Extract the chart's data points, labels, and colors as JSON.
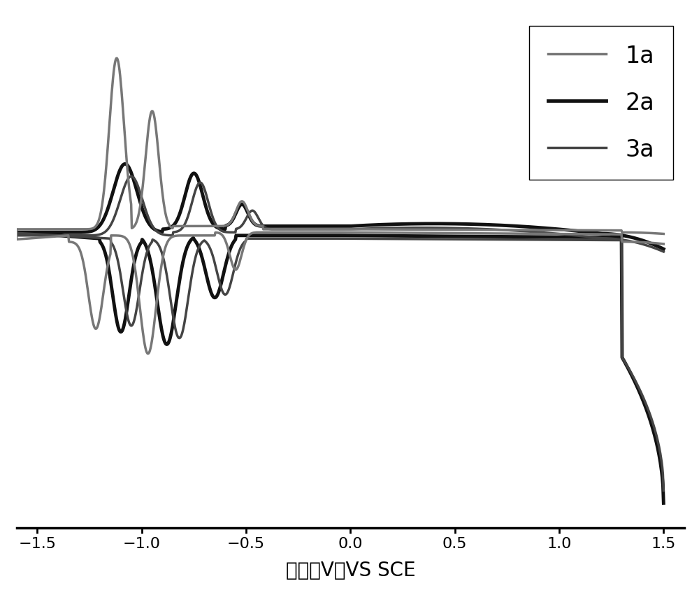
{
  "xlabel": "电势（V）VS SCE",
  "xlim": [
    -1.6,
    1.6
  ],
  "ylim": [
    -1.0,
    0.65
  ],
  "xticks": [
    -1.5,
    -1.0,
    -0.5,
    0.0,
    0.5,
    1.0,
    1.5
  ],
  "legend_labels": [
    "1a",
    "2a",
    "3a"
  ],
  "legend_colors": [
    "#777777",
    "#111111",
    "#444444"
  ],
  "legend_linewidths": [
    2.5,
    3.5,
    2.5
  ],
  "background_color": "#ffffff",
  "line1a_color": "#777777",
  "line2a_color": "#111111",
  "line3a_color": "#444444",
  "lw1a": 2.5,
  "lw2a": 3.5,
  "lw3a": 2.5
}
